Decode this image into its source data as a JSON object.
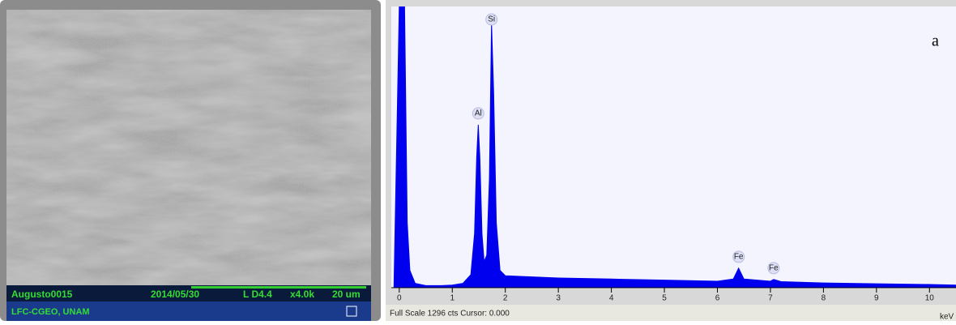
{
  "sem_panel": {
    "sample": "Augusto0015",
    "date": "2014/05/30",
    "mode": "L D4.4",
    "magnification": "x4.0k",
    "scale_bar": "20 um",
    "lab": "LFC-CGEO, UNAM"
  },
  "chart_data": {
    "type": "line",
    "panel_label": "a",
    "x_label": "keV",
    "footer": "Full Scale 1296 cts Cursor: 0.000",
    "color": "#0000ee",
    "fill": true,
    "x": [
      -0.1,
      0,
      0.05,
      0.1,
      0.15,
      0.2,
      0.3,
      0.5,
      0.8,
      1.0,
      1.2,
      1.35,
      1.42,
      1.46,
      1.49,
      1.52,
      1.56,
      1.6,
      1.65,
      1.7,
      1.74,
      1.78,
      1.83,
      1.9,
      2.0,
      2.5,
      3,
      4,
      5,
      6,
      6.3,
      6.4,
      6.5,
      7,
      7.06,
      7.2,
      8,
      9,
      10,
      10.5
    ],
    "values": [
      0,
      1296,
      1296,
      1296,
      300,
      80,
      20,
      10,
      10,
      12,
      20,
      60,
      250,
      600,
      751,
      600,
      250,
      120,
      150,
      500,
      1220,
      900,
      300,
      80,
      55,
      50,
      45,
      40,
      35,
      30,
      40,
      90,
      40,
      30,
      38,
      28,
      22,
      18,
      15,
      12
    ],
    "xlim": [
      -0.15,
      10.5
    ],
    "ylim": [
      0,
      1296
    ],
    "xticks": [
      0,
      1,
      2,
      3,
      4,
      5,
      6,
      7,
      8,
      9,
      10
    ],
    "annotations": [
      {
        "text": "Si",
        "x": 1.74
      },
      {
        "text": "Al",
        "x": 1.49
      },
      {
        "text": "Fe",
        "x": 6.4
      },
      {
        "text": "Fe",
        "x": 7.06
      }
    ]
  }
}
